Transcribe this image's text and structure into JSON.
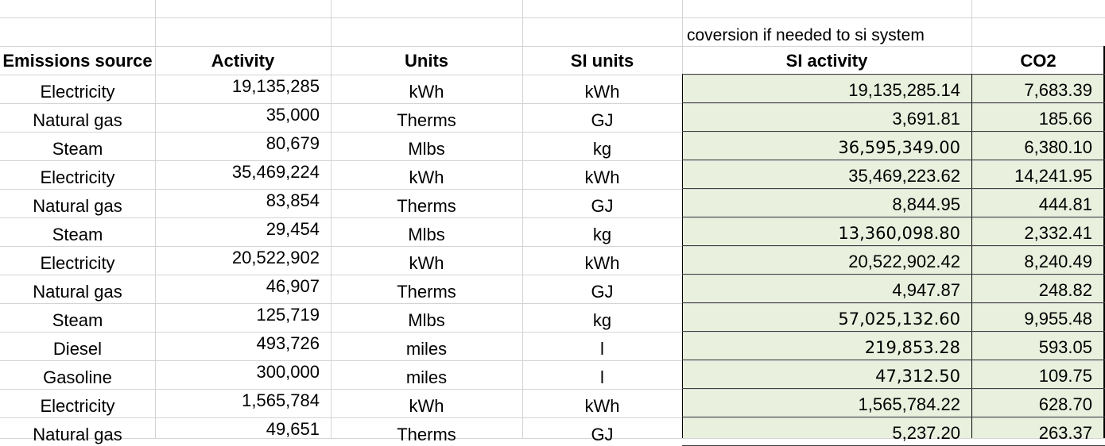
{
  "spreadsheet": {
    "note": "coversion if needed to si system",
    "headers": [
      "Emissions source",
      "Activity",
      "Units",
      "SI units",
      "SI activity",
      "CO2"
    ],
    "rows": [
      [
        "Electricity",
        "19,135,285",
        "kWh",
        "kWh",
        "19,135,285.14",
        "7,683.39"
      ],
      [
        "Natural gas",
        "35,000",
        "Therms",
        "GJ",
        "3,691.81",
        "185.66"
      ],
      [
        "Steam",
        "80,679",
        "Mlbs",
        "kg",
        "36,595,349.00",
        "6,380.10"
      ],
      [
        "Electricity",
        "35,469,224",
        "kWh",
        "kWh",
        "35,469,223.62",
        "14,241.95"
      ],
      [
        "Natural gas",
        "83,854",
        "Therms",
        "GJ",
        "8,844.95",
        "444.81"
      ],
      [
        "Steam",
        "29,454",
        "Mlbs",
        "kg",
        "13,360,098.80",
        "2,332.41"
      ],
      [
        "Electricity",
        "20,522,902",
        "kWh",
        "kWh",
        "20,522,902.42",
        "8,240.49"
      ],
      [
        "Natural gas",
        "46,907",
        "Therms",
        "GJ",
        "4,947.87",
        "248.82"
      ],
      [
        "Steam",
        "125,719",
        "Mlbs",
        "kg",
        "57,025,132.60",
        "9,955.48"
      ],
      [
        "Diesel",
        "493,726",
        "miles",
        "l",
        "219,853.28",
        "593.05"
      ],
      [
        "Gasoline",
        "300,000",
        "miles",
        "l",
        "47,312.50",
        "109.75"
      ],
      [
        "Electricity",
        "1,565,784",
        "kWh",
        "kWh",
        "1,565,784.22",
        "628.70"
      ],
      [
        "Natural gas",
        "49,651",
        "Therms",
        "GJ",
        "5,237.20",
        "263.37"
      ]
    ]
  }
}
